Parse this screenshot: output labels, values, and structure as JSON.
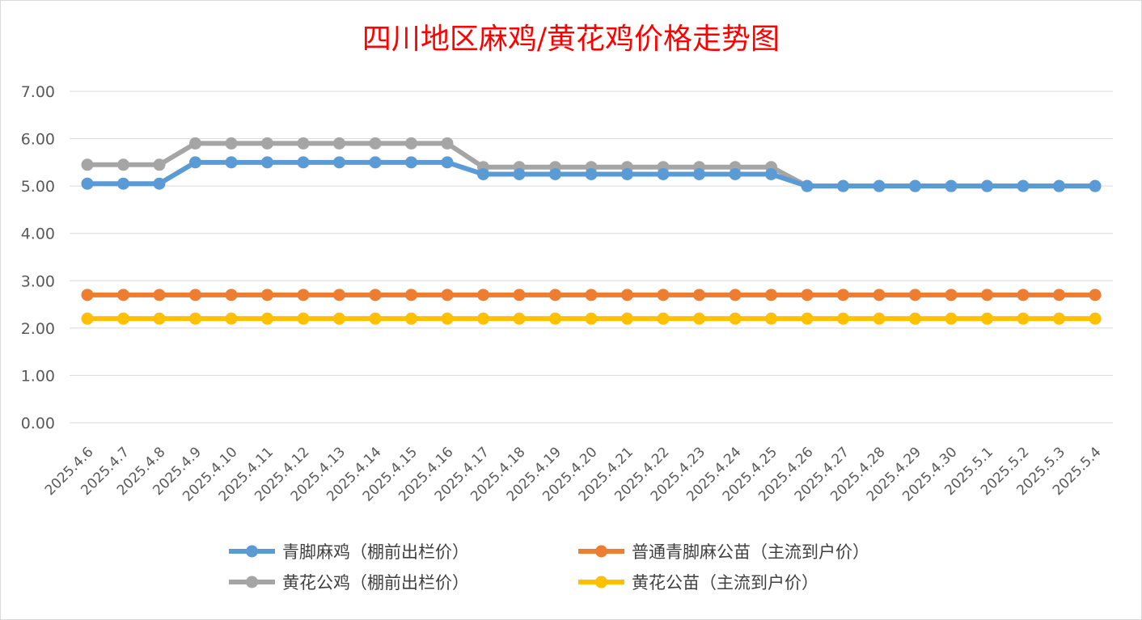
{
  "chart_data": {
    "type": "line",
    "title": "四川地区麻鸡/黄花鸡价格走势图",
    "xlabel": "",
    "ylabel": "",
    "ylim": [
      0,
      7
    ],
    "yticks": [
      "0.00",
      "1.00",
      "2.00",
      "3.00",
      "4.00",
      "5.00",
      "6.00",
      "7.00"
    ],
    "grid": true,
    "legend_position": "bottom",
    "categories": [
      "2025.4.6",
      "2025.4.7",
      "2025.4.8",
      "2025.4.9",
      "2025.4.10",
      "2025.4.11",
      "2025.4.12",
      "2025.4.13",
      "2025.4.14",
      "2025.4.15",
      "2025.4.16",
      "2025.4.17",
      "2025.4.18",
      "2025.4.19",
      "2025.4.20",
      "2025.4.21",
      "2025.4.22",
      "2025.4.23",
      "2025.4.24",
      "2025.4.25",
      "2025.4.26",
      "2025.4.27",
      "2025.4.28",
      "2025.4.29",
      "2025.4.30",
      "2025.5.1",
      "2025.5.2",
      "2025.5.3",
      "2025.5.4"
    ],
    "series": [
      {
        "name": "青脚麻鸡（棚前出栏价）",
        "color": "#5b9bd5",
        "values": [
          5.05,
          5.05,
          5.05,
          5.5,
          5.5,
          5.5,
          5.5,
          5.5,
          5.5,
          5.5,
          5.5,
          5.25,
          5.25,
          5.25,
          5.25,
          5.25,
          5.25,
          5.25,
          5.25,
          5.25,
          5.0,
          5.0,
          5.0,
          5.0,
          5.0,
          5.0,
          5.0,
          5.0,
          5.0
        ]
      },
      {
        "name": "普通青脚麻公苗（主流到户价）",
        "color": "#ed7d31",
        "values": [
          2.7,
          2.7,
          2.7,
          2.7,
          2.7,
          2.7,
          2.7,
          2.7,
          2.7,
          2.7,
          2.7,
          2.7,
          2.7,
          2.7,
          2.7,
          2.7,
          2.7,
          2.7,
          2.7,
          2.7,
          2.7,
          2.7,
          2.7,
          2.7,
          2.7,
          2.7,
          2.7,
          2.7,
          2.7
        ]
      },
      {
        "name": "黄花公鸡（棚前出栏价）",
        "color": "#a5a5a5",
        "values": [
          5.45,
          5.45,
          5.45,
          5.9,
          5.9,
          5.9,
          5.9,
          5.9,
          5.9,
          5.9,
          5.9,
          5.4,
          5.4,
          5.4,
          5.4,
          5.4,
          5.4,
          5.4,
          5.4,
          5.4,
          5.0,
          5.0,
          5.0,
          5.0,
          5.0,
          5.0,
          5.0,
          5.0,
          5.0
        ]
      },
      {
        "name": "黄花公苗（主流到户价）",
        "color": "#ffc000",
        "values": [
          2.2,
          2.2,
          2.2,
          2.2,
          2.2,
          2.2,
          2.2,
          2.2,
          2.2,
          2.2,
          2.2,
          2.2,
          2.2,
          2.2,
          2.2,
          2.2,
          2.2,
          2.2,
          2.2,
          2.2,
          2.2,
          2.2,
          2.2,
          2.2,
          2.2,
          2.2,
          2.2,
          2.2,
          2.2
        ]
      }
    ],
    "draw_order": [
      1,
      3,
      2,
      0
    ]
  }
}
